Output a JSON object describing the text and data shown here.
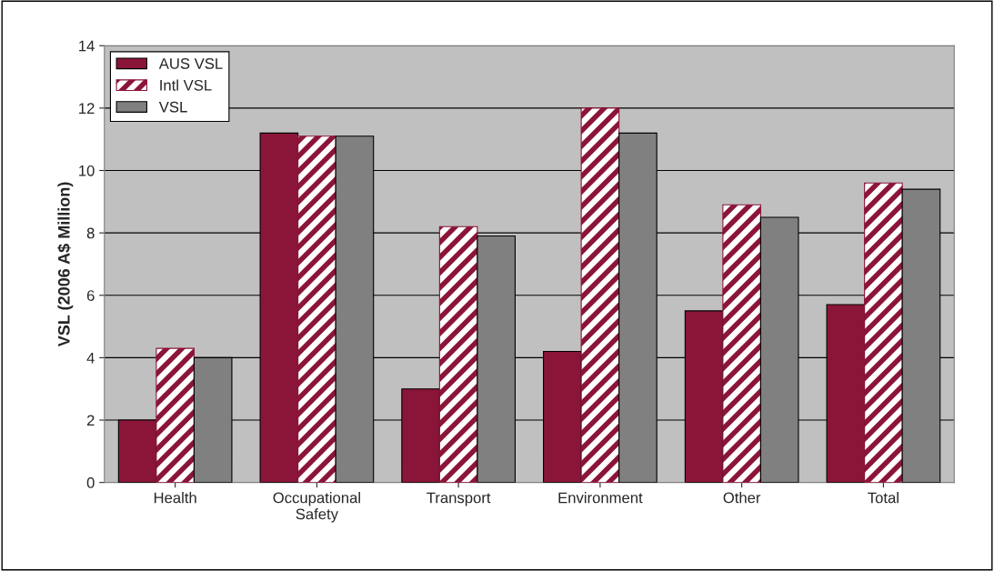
{
  "chart_data": {
    "type": "bar",
    "ylabel": "VSL (2006 A$ Million)",
    "categories": [
      "Health",
      "Occupational Safety",
      "Transport",
      "Environment",
      "Other",
      "Total"
    ],
    "series": [
      {
        "name": "AUS VSL",
        "color": "#8b1538",
        "values": [
          2.0,
          11.2,
          3.0,
          4.2,
          5.5,
          5.7
        ]
      },
      {
        "name": "Intl VSL",
        "color": "#8b1538",
        "values": [
          4.3,
          11.1,
          8.2,
          12.0,
          8.9,
          9.6
        ]
      },
      {
        "name": "VSL",
        "color": "#808080",
        "values": [
          4.0,
          11.1,
          7.9,
          11.2,
          8.5,
          9.4
        ]
      }
    ],
    "ylim": [
      0,
      14
    ],
    "yticks": [
      0,
      2,
      4,
      6,
      8,
      10,
      12,
      14
    ],
    "grid": "y",
    "legend": "top left"
  }
}
